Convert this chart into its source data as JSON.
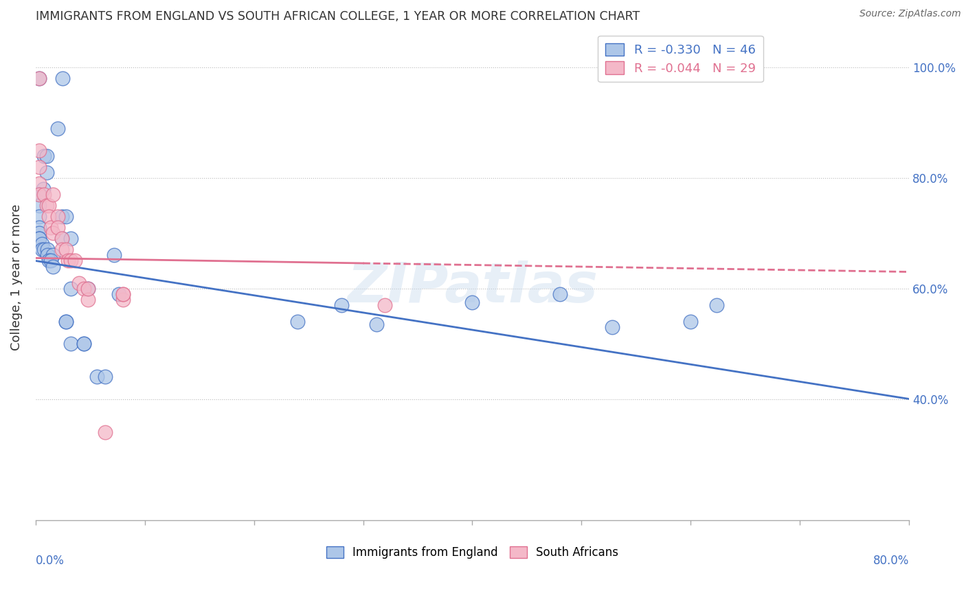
{
  "title": "IMMIGRANTS FROM ENGLAND VS SOUTH AFRICAN COLLEGE, 1 YEAR OR MORE CORRELATION CHART",
  "source": "Source: ZipAtlas.com",
  "ylabel": "College, 1 year or more",
  "blue_color": "#adc6e8",
  "blue_line_color": "#4472c4",
  "pink_color": "#f4b8c8",
  "pink_line_color": "#e07090",
  "blue_R": -0.33,
  "blue_N": 46,
  "pink_R": -0.044,
  "pink_N": 29,
  "xlim": [
    0.0,
    0.8
  ],
  "ylim": [
    0.18,
    1.06
  ],
  "blue_points_x": [
    0.025,
    0.003,
    0.008,
    0.01,
    0.01,
    0.007,
    0.003,
    0.003,
    0.003,
    0.003,
    0.003,
    0.003,
    0.003,
    0.006,
    0.006,
    0.008,
    0.011,
    0.011,
    0.016,
    0.012,
    0.014,
    0.016,
    0.02,
    0.024,
    0.028,
    0.024,
    0.032,
    0.032,
    0.028,
    0.028,
    0.032,
    0.044,
    0.044,
    0.048,
    0.056,
    0.064,
    0.072,
    0.076,
    0.24,
    0.28,
    0.312,
    0.4,
    0.48,
    0.528,
    0.6,
    0.624
  ],
  "blue_points_y": [
    0.98,
    0.98,
    0.84,
    0.84,
    0.81,
    0.78,
    0.77,
    0.75,
    0.73,
    0.71,
    0.7,
    0.69,
    0.69,
    0.68,
    0.67,
    0.67,
    0.67,
    0.66,
    0.66,
    0.65,
    0.65,
    0.64,
    0.89,
    0.73,
    0.73,
    0.69,
    0.69,
    0.6,
    0.54,
    0.54,
    0.5,
    0.5,
    0.5,
    0.6,
    0.44,
    0.44,
    0.66,
    0.59,
    0.54,
    0.57,
    0.535,
    0.575,
    0.59,
    0.53,
    0.54,
    0.57
  ],
  "pink_points_x": [
    0.003,
    0.003,
    0.003,
    0.003,
    0.003,
    0.008,
    0.01,
    0.012,
    0.012,
    0.014,
    0.016,
    0.016,
    0.02,
    0.02,
    0.024,
    0.024,
    0.028,
    0.03,
    0.032,
    0.036,
    0.04,
    0.044,
    0.048,
    0.08,
    0.048,
    0.08,
    0.08,
    0.32,
    0.064
  ],
  "pink_points_y": [
    0.98,
    0.85,
    0.82,
    0.79,
    0.77,
    0.77,
    0.75,
    0.75,
    0.73,
    0.71,
    0.7,
    0.77,
    0.73,
    0.71,
    0.69,
    0.67,
    0.67,
    0.65,
    0.65,
    0.65,
    0.61,
    0.6,
    0.58,
    0.58,
    0.6,
    0.59,
    0.59,
    0.57,
    0.34
  ],
  "watermark": "ZIPatlas",
  "bg_color": "#ffffff",
  "blue_line_start_y": 0.65,
  "blue_line_end_y": 0.4,
  "pink_line_start_y": 0.655,
  "pink_line_end_y": 0.63
}
